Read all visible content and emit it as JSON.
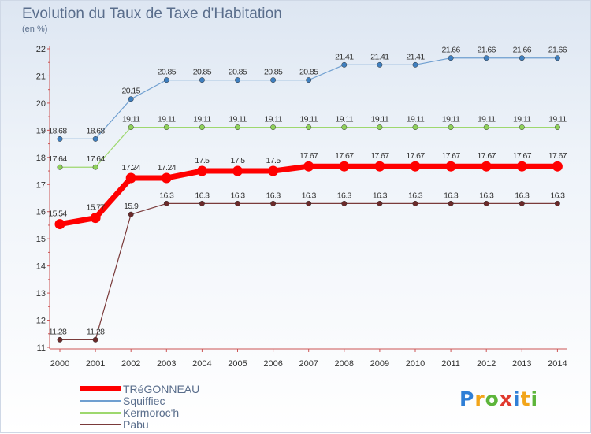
{
  "chart_data": {
    "type": "line",
    "title": "Evolution du Taux de Taxe d'Habitation",
    "subtitle": "(en %)",
    "x": [
      "2000",
      "2001",
      "2002",
      "2003",
      "2004",
      "2005",
      "2006",
      "2007",
      "2008",
      "2009",
      "2010",
      "2011",
      "2012",
      "2013",
      "2014"
    ],
    "ylim": [
      11,
      22
    ],
    "yticks": [
      11,
      12,
      13,
      14,
      15,
      16,
      17,
      18,
      19,
      20,
      21,
      22
    ],
    "series": [
      {
        "name": "Squiffiec",
        "color": "#6f9fd0",
        "marker": "#3f7fbf",
        "values": [
          18.68,
          18.68,
          20.15,
          20.85,
          20.85,
          20.85,
          20.85,
          20.85,
          21.41,
          21.41,
          21.41,
          21.66,
          21.66,
          21.66,
          21.66
        ],
        "labels": [
          "18.68",
          "18.68",
          "20.15",
          "20.85",
          "20.85",
          "20.85",
          "20.85",
          "20.85",
          "21.41",
          "21.41",
          "21.41",
          "21.66",
          "21.66",
          "21.66",
          "21.66"
        ]
      },
      {
        "name": "Kermoroc'h",
        "color": "#9ed86e",
        "marker": "#8ed05a",
        "values": [
          17.64,
          17.64,
          19.11,
          19.11,
          19.11,
          19.11,
          19.11,
          19.11,
          19.11,
          19.11,
          19.11,
          19.11,
          19.11,
          19.11,
          19.11
        ],
        "labels": [
          "17.64",
          "17.64",
          "19.11",
          "19.11",
          "19.11",
          "19.11",
          "19.11",
          "19.11",
          "19.11",
          "19.11",
          "19.11",
          "19.11",
          "19.11",
          "19.11",
          "19.11"
        ]
      },
      {
        "name": "Pabu",
        "color": "#7a3a3a",
        "marker": "#6b2a2a",
        "values": [
          11.28,
          11.28,
          15.9,
          16.3,
          16.3,
          16.3,
          16.3,
          16.3,
          16.3,
          16.3,
          16.3,
          16.3,
          16.3,
          16.3,
          16.3
        ],
        "labels": [
          "11.28",
          "11.28",
          "15.9",
          "16.3",
          "16.3",
          "16.3",
          "16.3",
          "16.3",
          "16.3",
          "16.3",
          "16.3",
          "16.3",
          "16.3",
          "16.3",
          "16.3"
        ]
      },
      {
        "name": "TRéGONNEAU",
        "color": "#ff0000",
        "marker": "#ff0000",
        "values": [
          15.54,
          15.77,
          17.24,
          17.24,
          17.5,
          17.5,
          17.5,
          17.67,
          17.67,
          17.67,
          17.67,
          17.67,
          17.67,
          17.67,
          17.67
        ],
        "labels": [
          "15.54",
          "15.77",
          "17.24",
          "17.24",
          "17.5",
          "17.5",
          "17.5",
          "17.67",
          "17.67",
          "17.67",
          "17.67",
          "17.67",
          "17.67",
          "17.67",
          "17.67"
        ]
      }
    ],
    "legend_order": [
      "TRéGONNEAU",
      "Squiffiec",
      "Kermoroc'h",
      "Pabu"
    ],
    "grid": false,
    "legend_position": "bottom-left"
  },
  "brand": {
    "letters": [
      "P",
      "r",
      "o",
      "x",
      "i",
      "t",
      "i"
    ],
    "colors": [
      "#2f7fd6",
      "#f2a51a",
      "#5db53a",
      "#e03a2e",
      "#2f7fd6",
      "#f2a51a",
      "#5db53a"
    ]
  }
}
